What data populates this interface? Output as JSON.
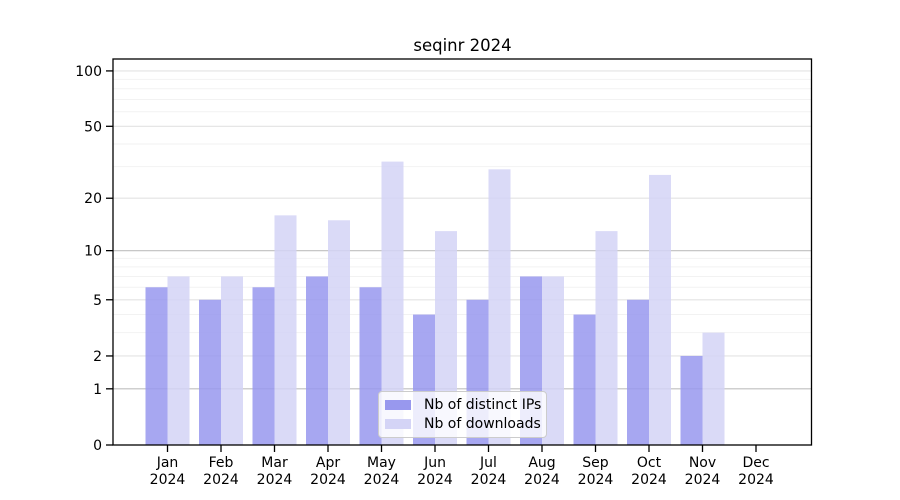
{
  "title": "seqinr 2024",
  "legend": {
    "items": [
      {
        "label": "Nb of distinct IPs"
      },
      {
        "label": "Nb of downloads"
      }
    ]
  },
  "colors": {
    "bar_distinct_ips": "#9898ee",
    "bar_downloads": "#d4d4f6",
    "bar_opacity": "0.85",
    "grid_major": "#e3e3e3",
    "grid_emphasized": "#bfbfbf",
    "grid_minor": "#f2f2f2",
    "axis": "#000000",
    "legend_border": "#cccccc"
  },
  "chart_data": {
    "type": "bar",
    "title": "seqinr 2024",
    "scale": "log1p",
    "grid": true,
    "legend_position": "lower center inside",
    "year_label": "2024",
    "categories": [
      "Jan",
      "Feb",
      "Mar",
      "Apr",
      "May",
      "Jun",
      "Jul",
      "Aug",
      "Sep",
      "Oct",
      "Nov",
      "Dec"
    ],
    "series": [
      {
        "name": "Nb of distinct IPs",
        "values": [
          6,
          5,
          6,
          7,
          6,
          4,
          5,
          7,
          4,
          5,
          2,
          0
        ]
      },
      {
        "name": "Nb of downloads",
        "values": [
          7,
          7,
          16,
          15,
          32,
          13,
          29,
          7,
          13,
          27,
          3,
          0
        ]
      }
    ],
    "yticks": [
      0,
      1,
      2,
      5,
      10,
      20,
      50,
      100
    ],
    "minor_gridlines": [
      3,
      4,
      6,
      7,
      8,
      9,
      30,
      40,
      60,
      70,
      80,
      90
    ],
    "emphasized_gridlines": [
      1,
      10
    ],
    "ylim": [
      0,
      116
    ]
  }
}
